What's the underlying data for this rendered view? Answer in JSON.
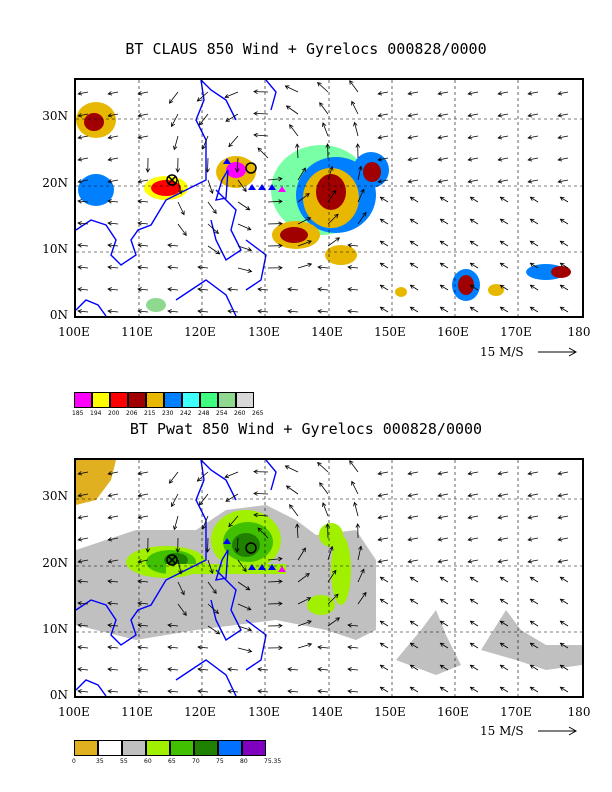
{
  "panels": [
    {
      "title": "BT CLAUS 850 Wind + Gyrelocs 000828/0000",
      "lat_labels": [
        "30N",
        "20N",
        "10N",
        "0N"
      ],
      "lon_labels": [
        "100E",
        "110E",
        "120E",
        "130E",
        "140E",
        "150E",
        "160E",
        "170E",
        "180"
      ],
      "wind_scale": "15 M/S",
      "legend_values": [
        "185",
        "194",
        "200",
        "206",
        "215",
        "230",
        "242",
        "248",
        "254",
        "260",
        "265"
      ],
      "legend_colors": [
        "#ff00ff",
        "#ffff00",
        "#ff0000",
        "#a00000",
        "#e8b800",
        "#0080ff",
        "#40ffff",
        "#40ff80",
        "#8fd88f",
        "#d8d8d8"
      ]
    },
    {
      "title": "BT Pwat 850 Wind + Gyrelocs 000828/0000",
      "lat_labels": [
        "30N",
        "20N",
        "10N",
        "0N"
      ],
      "lon_labels": [
        "100E",
        "110E",
        "120E",
        "130E",
        "140E",
        "150E",
        "160E",
        "170E",
        "180"
      ],
      "wind_scale": "15 M/S",
      "legend_values": [
        "0",
        "35",
        "55",
        "60",
        "65",
        "70",
        "75",
        "80",
        "75.35"
      ],
      "legend_colors": [
        "#e0b020",
        "#ffffff",
        "#c0c0c0",
        "#a0f000",
        "#40c000",
        "#208000",
        "#0070ff",
        "#8000c0"
      ]
    }
  ],
  "gyre_markers": [
    "circle-x-marker",
    "circle-marker",
    "triangle-marker"
  ],
  "map": {
    "coast_color": "#0000ff",
    "grid_style": "dashed"
  }
}
